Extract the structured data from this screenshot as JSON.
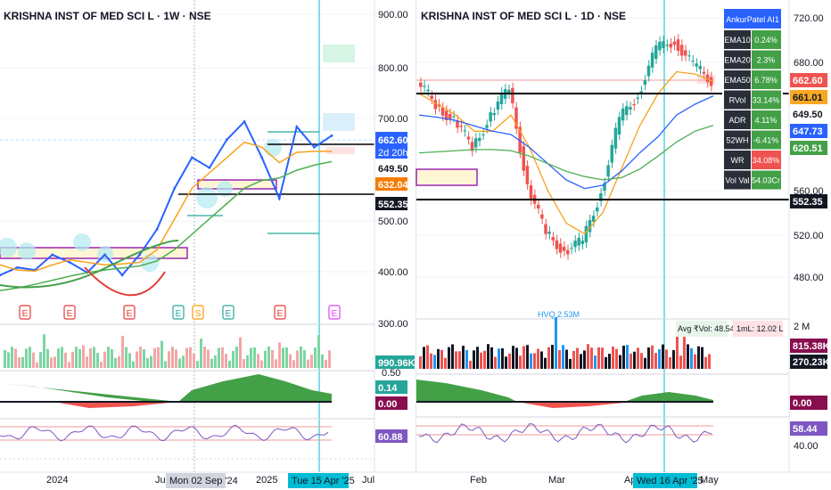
{
  "colors": {
    "up": "#26a69a",
    "down": "#ef5350",
    "ema10": "#2962ff",
    "ema20": "#f7a21b",
    "ema50": "#4caf50",
    "crosshair": "#00bcd4",
    "rsi": "#7e57c2",
    "vol_blue": "#2196f3",
    "vol_dark": "#131722",
    "black_line": "#000000"
  },
  "left": {
    "title": "KRISHNA INST OF MED SCI L · 1W · NSE",
    "price_axis": [
      "900.00",
      "800.00",
      "700.00",
      "500.00",
      "400.00",
      "300.00"
    ],
    "price_tags": {
      "last": "662.60",
      "countdown": "2d 20h",
      "level1": "649.50",
      "ema": "632.04",
      "level2": "552.35"
    },
    "earnings": [
      {
        "label": "E",
        "kind": "miss"
      },
      {
        "label": "E",
        "kind": "miss"
      },
      {
        "label": "E",
        "kind": "miss"
      },
      {
        "label": "E",
        "kind": "beat"
      },
      {
        "label": "S",
        "kind": "split"
      },
      {
        "label": "E",
        "kind": "beat"
      },
      {
        "label": "E",
        "kind": "miss"
      },
      {
        "label": "E",
        "kind": "future"
      }
    ],
    "volume_tag": "990.96K",
    "osc_tags": {
      "upper": "0.14",
      "lower": "0.00"
    },
    "osc_axis": "0.50",
    "rsi_tag": "60.88",
    "time_axis": [
      "2024",
      "Jul",
      "2025",
      "Jul"
    ],
    "time_tags": {
      "a": "Mon 02 Sep '24",
      "b": "Tue 15 Apr '25"
    }
  },
  "right": {
    "title": "KRISHNA INST OF MED SCI L · 1D · NSE",
    "price_axis": [
      "720.00",
      "680.00",
      "560.00",
      "520.00",
      "480.00"
    ],
    "price_tags": {
      "last": "662.60",
      "t1": "661.01",
      "t2": "649.50",
      "t3": "647.73",
      "t4": "620.51",
      "t5": "552.35"
    },
    "volume_axis": "2 M",
    "volume_tags": {
      "v1": "815.38K",
      "v2": "270.23K"
    },
    "volume_annotations": {
      "hvq": "HVQ 2.53M",
      "avg": "Avg ₹Vol: 48.54 Cr",
      "ml": "1mL: 12.02 L"
    },
    "osc_tag": "0.00",
    "rsi_tag": "58.44",
    "rsi_axis": "40.00",
    "time_axis": [
      "Feb",
      "Mar",
      "Ap",
      "May"
    ],
    "time_tag": "Wed 16 Apr '25"
  },
  "info_table": {
    "header": "AnkurPatel AI1",
    "rows": [
      {
        "label": "EMA10",
        "value": "0.24%",
        "tone": "green"
      },
      {
        "label": "EMA20",
        "value": "2.3%",
        "tone": "green"
      },
      {
        "label": "EMA50",
        "value": "6.78%",
        "tone": "green"
      },
      {
        "label": "RVol",
        "value": "33.14%",
        "tone": "green"
      },
      {
        "label": "ADR",
        "value": "4.11%",
        "tone": "green"
      },
      {
        "label": "52WH",
        "value": "-6.41%",
        "tone": "green"
      },
      {
        "label": "WR",
        "value": "34.08%",
        "tone": "red"
      },
      {
        "label": "Vol Val",
        "value": "54.03Cr",
        "tone": "green"
      }
    ]
  },
  "chart_data": [
    {
      "type": "line",
      "title": "KRISHNA INST OF MED SCI L · 1W · NSE",
      "x": [
        "2023-10",
        "2023-11",
        "2023-12",
        "2024-01",
        "2024-02",
        "2024-03",
        "2024-04",
        "2024-05",
        "2024-06",
        "2024-07",
        "2024-08",
        "2024-09",
        "2024-10",
        "2024-11",
        "2024-12",
        "2025-01",
        "2025-02",
        "2025-03",
        "2025-04",
        "2025-05"
      ],
      "series": [
        {
          "values": [
            390,
            405,
            400,
            430,
            415,
            395,
            430,
            390,
            430,
            480,
            560,
            620,
            600,
            655,
            690,
            620,
            540,
            680,
            640,
            662.6
          ]
        },
        {
          "values": [
            410,
            400,
            398,
            410,
            420,
            415,
            410,
            412,
            415,
            440,
            500,
            560,
            590,
            620,
            650,
            640,
            610,
            630,
            632,
            632
          ]
        },
        {
          "values": [
            360,
            365,
            372,
            380,
            388,
            395,
            400,
            404,
            408,
            418,
            440,
            470,
            500,
            530,
            560,
            575,
            580,
            595,
            605,
            612
          ]
        }
      ],
      "ylim": [
        300,
        900
      ],
      "levels": [
        649.5,
        552.35
      ]
    },
    {
      "type": "line",
      "title": "KRISHNA INST OF MED SCI L · 1D · NSE",
      "x": [
        "2025-01-15",
        "2025-01-22",
        "2025-01-29",
        "2025-02-05",
        "2025-02-12",
        "2025-02-19",
        "2025-02-26",
        "2025-03-05",
        "2025-03-12",
        "2025-03-19",
        "2025-03-26",
        "2025-04-02",
        "2025-04-09",
        "2025-04-16",
        "2025-04-23",
        "2025-04-30",
        "2025-05-05"
      ],
      "series": [
        {
          "values": [
            660,
            640,
            625,
            600,
            630,
            655,
            565,
            520,
            505,
            512,
            560,
            625,
            650,
            690,
            700,
            675,
            662.6
          ]
        },
        {
          "values": [
            650,
            640,
            630,
            615,
            615,
            630,
            600,
            560,
            530,
            520,
            540,
            580,
            620,
            650,
            670,
            668,
            661.01
          ]
        },
        {
          "values": [
            630,
            628,
            625,
            620,
            615,
            612,
            600,
            585,
            570,
            562,
            565,
            578,
            595,
            610,
            630,
            640,
            647.73
          ]
        },
        {
          "values": [
            595,
            596,
            597,
            598,
            598,
            597,
            592,
            585,
            578,
            573,
            570,
            572,
            580,
            592,
            605,
            615,
            620.51
          ]
        }
      ],
      "ylim": [
        460,
        740
      ],
      "levels": [
        649.5,
        552.35
      ]
    }
  ]
}
